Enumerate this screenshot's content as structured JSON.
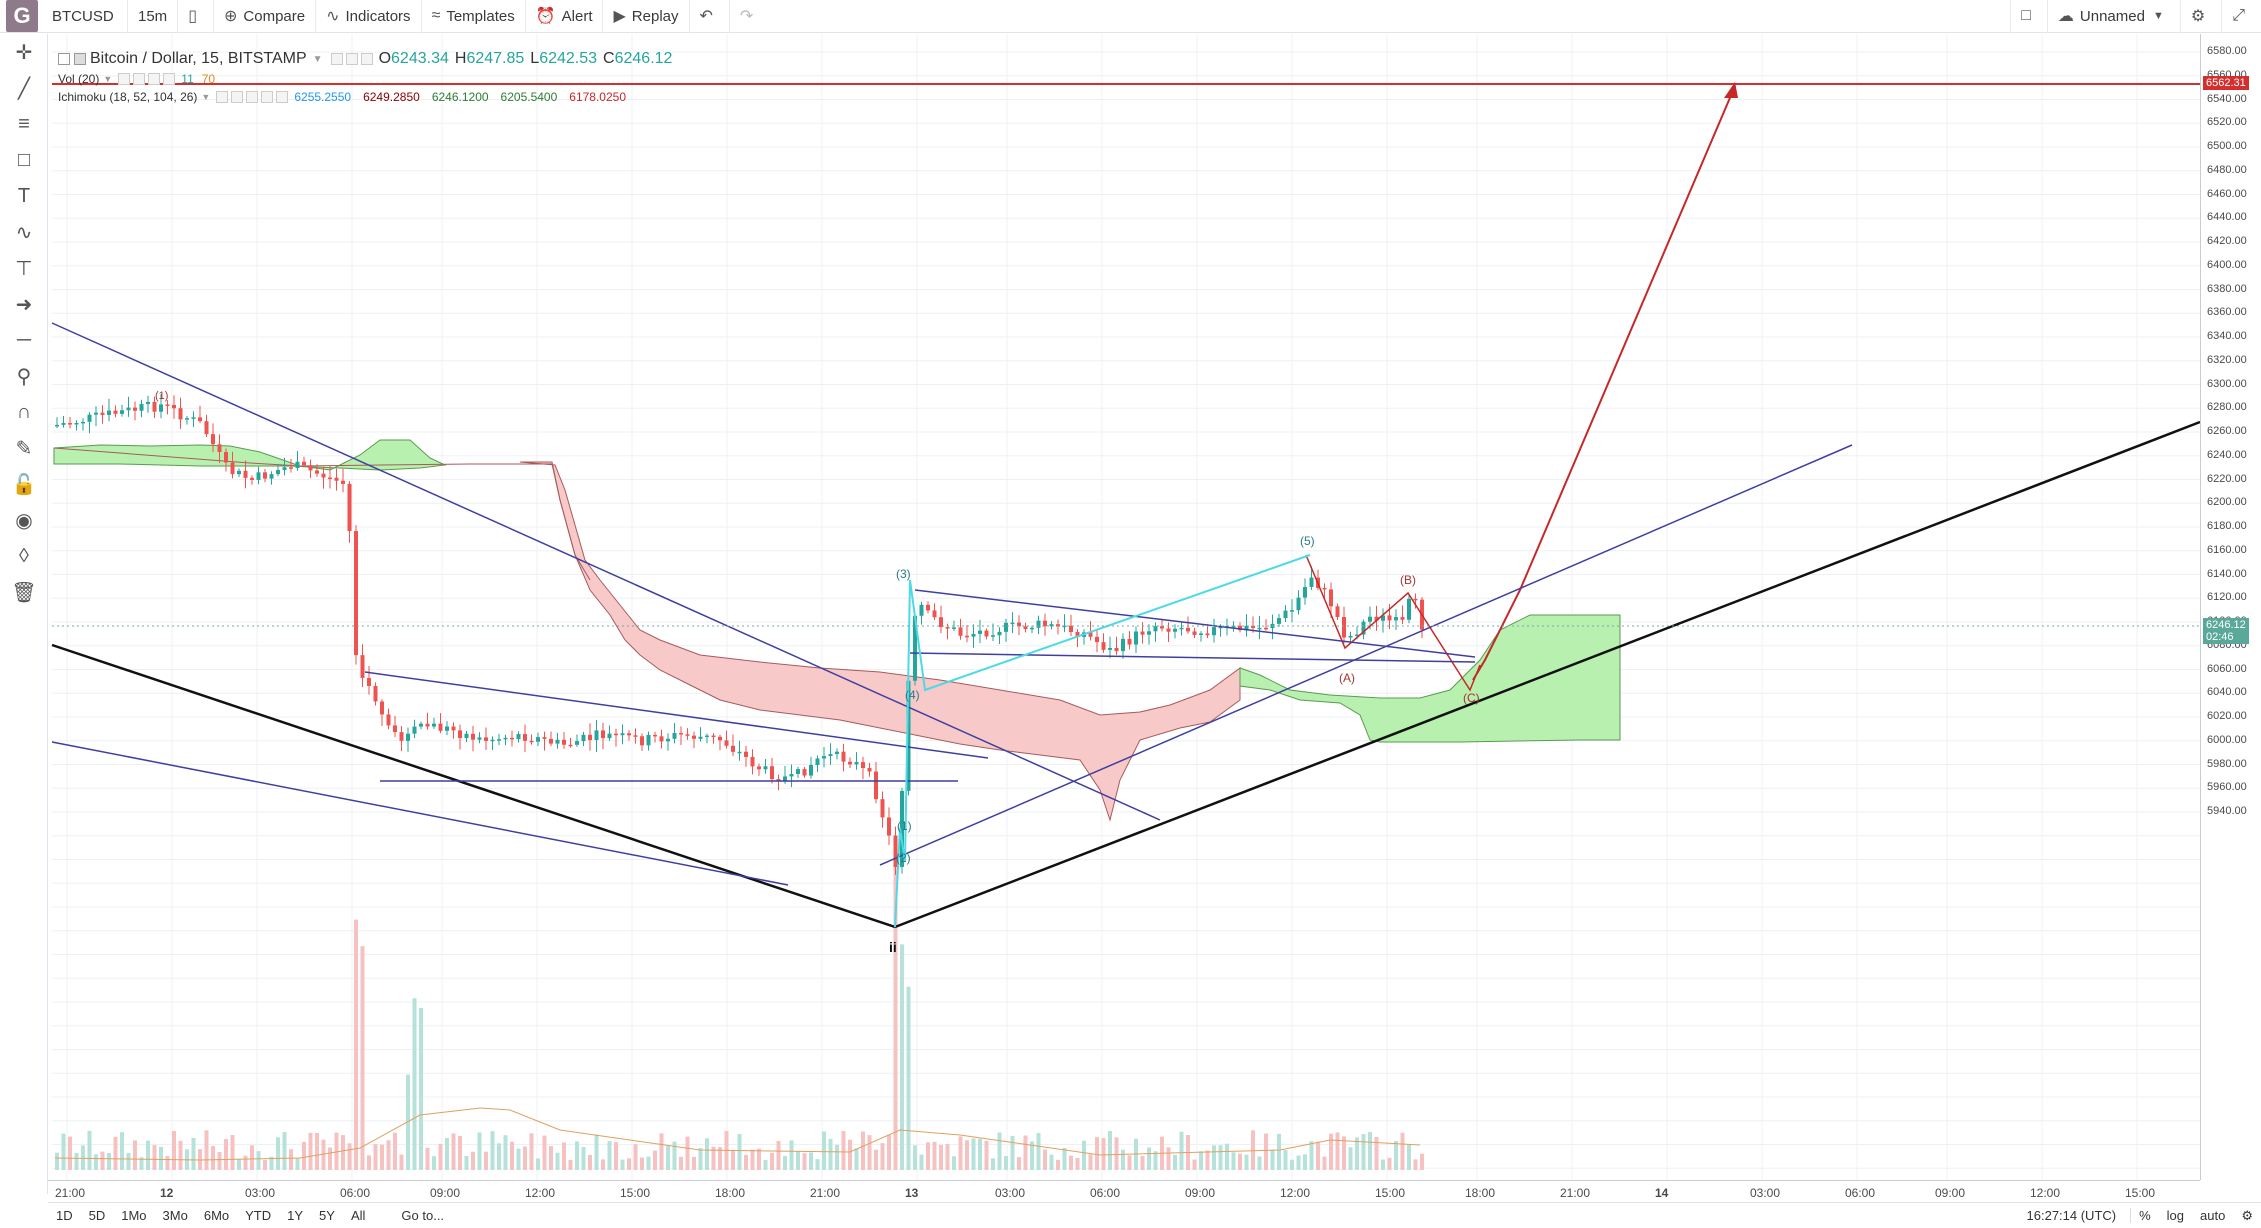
{
  "toolbar": {
    "symbol": "BTCUSD",
    "interval": "15m",
    "compare": "Compare",
    "indicators": "Indicators",
    "templates": "Templates",
    "alert": "Alert",
    "replay": "Replay",
    "layout_name": "Unnamed"
  },
  "legend": {
    "title": "Bitcoin / Dollar, 15, BITSTAMP",
    "open_label": "O",
    "open": "6243.34",
    "high_label": "H",
    "high": "6247.85",
    "low_label": "L",
    "low": "6242.53",
    "close_label": "C",
    "close": "6246.12",
    "vol_label": "Vol (20)",
    "vol_v1": "11",
    "vol_v2": "70",
    "ichimoku_label": "Ichimoku (18, 52, 104, 26)",
    "ichi_v1": "6255.2550",
    "ichi_v2": "6249.2850",
    "ichi_v3": "6246.1200",
    "ichi_v4": "6205.5400",
    "ichi_v5": "6178.0250"
  },
  "price_axis": {
    "ticks": [
      "6580.00",
      "6560.00",
      "6540.00",
      "6520.00",
      "6500.00",
      "6480.00",
      "6460.00",
      "6440.00",
      "6420.00",
      "6400.00",
      "6380.00",
      "6360.00",
      "6340.00",
      "6320.00",
      "6300.00",
      "6280.00",
      "6260.00",
      "6240.00",
      "6220.00",
      "6200.00",
      "6180.00",
      "6160.00",
      "6140.00",
      "6120.00",
      "6100.00",
      "6080.00",
      "6060.00",
      "6040.00",
      "6020.00",
      "6000.00",
      "5980.00",
      "5960.00",
      "5940.00"
    ],
    "target_label": "6562.31",
    "last_price": "6246.12",
    "countdown": "02:46"
  },
  "time_axis": {
    "ticks": [
      "21:00",
      "12",
      "03:00",
      "06:00",
      "09:00",
      "12:00",
      "15:00",
      "18:00",
      "21:00",
      "13",
      "03:00",
      "06:00",
      "09:00",
      "12:00",
      "15:00",
      "18:00",
      "21:00",
      "14",
      "03:00",
      "06:00",
      "09:00",
      "12:00",
      "15:00"
    ]
  },
  "wave_labels": {
    "w1": "(1)",
    "w2": "(2)",
    "w3": "(3)",
    "w4": "(4)",
    "w5": "(5)",
    "wa": "(A)",
    "wb": "(B)",
    "wc": "(C)",
    "wii": "ii",
    "wtop": "(1)"
  },
  "bottom": {
    "ranges": [
      "1D",
      "5D",
      "1Mo",
      "3Mo",
      "6Mo",
      "YTD",
      "1Y",
      "5Y",
      "All"
    ],
    "goto": "Go to...",
    "clock": "16:27:14 (UTC)",
    "pct": "%",
    "log": "log",
    "auto": "auto"
  },
  "colors": {
    "up": "#26a69a",
    "down": "#ef5350",
    "cloud_red": "#f7c9c9",
    "cloud_green": "#b8f0b0",
    "target_line": "#d32f2f",
    "trend_blue": "#3f3fa0",
    "wave_cyan": "#4dd9e6"
  }
}
